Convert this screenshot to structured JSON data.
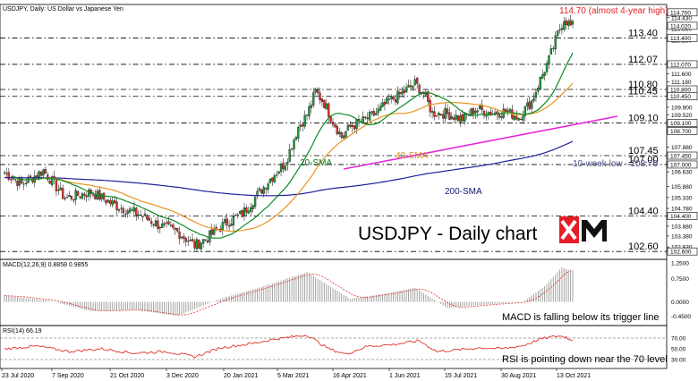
{
  "header": {
    "title": "USDJPY, Daily:  US Dollar vs Japanese Yen"
  },
  "chart_data": {
    "type": "candlestick",
    "title": "USDJPY - Daily chart",
    "symbol": "USDJPY",
    "timeframe": "Daily",
    "ylim": [
      102.2,
      115.1
    ],
    "y_ticks": [
      "115.150",
      "114.600",
      "114.430",
      "113.880",
      "113.280",
      "112.130",
      "111.600",
      "111.180",
      "110.490",
      "109.900",
      "109.520",
      "108.700",
      "107.880",
      "107.000",
      "106.630",
      "105.880",
      "105.330",
      "104.780",
      "104.400",
      "103.880",
      "103.380",
      "102.830"
    ],
    "level_boxes": [
      "114.700",
      "114.020",
      "113.400",
      "112.070",
      "110.800",
      "110.450",
      "109.100",
      "108.700",
      "107.450",
      "107.000",
      "104.400",
      "102.600"
    ],
    "x_labels": [
      "23 Jul 2020",
      "7 Sep 2020",
      "21 Oct 2020",
      "3 Dec 2020",
      "20 Jan 2021",
      "5 Mar 2021",
      "16 Apr 2021",
      "1 Jun 2021",
      "15 Jul 2021",
      "30 Aug 2021",
      "13 Oct 2021"
    ],
    "key_levels": [
      {
        "label": "113.40",
        "value": 113.4
      },
      {
        "label": "112.07",
        "value": 112.07
      },
      {
        "label": "110.80",
        "value": 110.8
      },
      {
        "label": "110.45",
        "value": 110.45
      },
      {
        "label": "109.10",
        "value": 109.1
      },
      {
        "label": "107.45",
        "value": 107.45
      },
      {
        "label": "107.00",
        "value": 107.0
      },
      {
        "label": "104.40",
        "value": 104.4
      },
      {
        "label": "102.60",
        "value": 102.6
      }
    ],
    "annotations": {
      "high": "114.70 (almost 4-year high)",
      "low10w": "10-week low - 108.70",
      "sma20": "20-SMA",
      "sma40": "40-SMA",
      "sma200": "200-SMA",
      "macd_note": "MACD is falling below its trigger line",
      "rsi_note": "RSI is pointing down near the 70 level"
    },
    "price_anchors": [
      [
        0,
        106.6
      ],
      [
        8,
        106.0
      ],
      [
        18,
        106.7
      ],
      [
        28,
        105.3
      ],
      [
        40,
        105.6
      ],
      [
        52,
        104.9
      ],
      [
        62,
        104.5
      ],
      [
        72,
        103.9
      ],
      [
        80,
        103.6
      ],
      [
        88,
        102.9
      ],
      [
        94,
        103.3
      ],
      [
        102,
        104.0
      ],
      [
        110,
        104.5
      ],
      [
        118,
        105.6
      ],
      [
        124,
        106.4
      ],
      [
        130,
        107.1
      ],
      [
        136,
        108.9
      ],
      [
        140,
        109.5
      ],
      [
        144,
        110.7
      ],
      [
        148,
        110.1
      ],
      [
        152,
        109.2
      ],
      [
        156,
        108.4
      ],
      [
        160,
        108.9
      ],
      [
        166,
        109.2
      ],
      [
        172,
        109.6
      ],
      [
        178,
        110.2
      ],
      [
        184,
        110.6
      ],
      [
        190,
        111.1
      ],
      [
        194,
        110.6
      ],
      [
        198,
        109.6
      ],
      [
        204,
        109.6
      ],
      [
        212,
        109.3
      ],
      [
        218,
        109.8
      ],
      [
        226,
        109.6
      ],
      [
        232,
        109.7
      ],
      [
        238,
        109.4
      ],
      [
        244,
        110.2
      ],
      [
        248,
        111.3
      ],
      [
        252,
        112.3
      ],
      [
        256,
        113.6
      ],
      [
        259,
        114.4
      ],
      [
        262,
        114.0
      ]
    ],
    "macd": {
      "label": "MACD(12,26,9) 0.8858 0.9855",
      "ticks": [
        "1.2500",
        "0.7500",
        "0.0000",
        "-0.4500"
      ],
      "ylim": [
        -0.7,
        1.3
      ],
      "anchors": [
        [
          0,
          0.2
        ],
        [
          20,
          0.05
        ],
        [
          40,
          -0.3
        ],
        [
          60,
          -0.25
        ],
        [
          80,
          -0.45
        ],
        [
          100,
          0.1
        ],
        [
          120,
          0.5
        ],
        [
          140,
          0.95
        ],
        [
          160,
          0.1
        ],
        [
          175,
          0.25
        ],
        [
          190,
          0.45
        ],
        [
          205,
          -0.2
        ],
        [
          220,
          -0.1
        ],
        [
          240,
          0.0
        ],
        [
          250,
          0.5
        ],
        [
          258,
          1.1
        ],
        [
          262,
          1.0
        ]
      ]
    },
    "rsi": {
      "label": "RSI(14) 66.19",
      "ticks": [
        "70.00",
        "50.00",
        "30.00"
      ],
      "ylim": [
        15,
        90
      ],
      "anchors": [
        [
          0,
          50
        ],
        [
          15,
          55
        ],
        [
          30,
          45
        ],
        [
          45,
          50
        ],
        [
          60,
          42
        ],
        [
          75,
          45
        ],
        [
          88,
          35
        ],
        [
          100,
          52
        ],
        [
          115,
          60
        ],
        [
          125,
          68
        ],
        [
          140,
          76
        ],
        [
          150,
          50
        ],
        [
          158,
          40
        ],
        [
          168,
          55
        ],
        [
          180,
          58
        ],
        [
          192,
          65
        ],
        [
          200,
          45
        ],
        [
          210,
          48
        ],
        [
          220,
          52
        ],
        [
          230,
          50
        ],
        [
          240,
          56
        ],
        [
          248,
          68
        ],
        [
          256,
          74
        ],
        [
          260,
          72
        ],
        [
          262,
          66
        ]
      ]
    }
  }
}
